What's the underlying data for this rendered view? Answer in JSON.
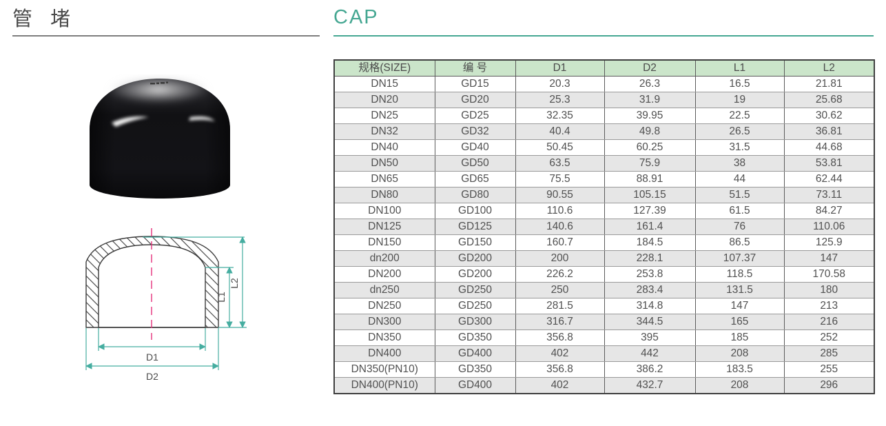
{
  "header": {
    "title_cn": "管 堵",
    "title_en": "CAP"
  },
  "drawing": {
    "dim_d1": "D1",
    "dim_d2": "D2",
    "dim_l1": "L1",
    "dim_l2": "L2"
  },
  "table": {
    "headers": [
      "规格(SIZE)",
      "编 号",
      "D1",
      "D2",
      "L1",
      "L2"
    ],
    "rows": [
      [
        "DN15",
        "GD15",
        "20.3",
        "26.3",
        "16.5",
        "21.81"
      ],
      [
        "DN20",
        "GD20",
        "25.3",
        "31.9",
        "19",
        "25.68"
      ],
      [
        "DN25",
        "GD25",
        "32.35",
        "39.95",
        "22.5",
        "30.62"
      ],
      [
        "DN32",
        "GD32",
        "40.4",
        "49.8",
        "26.5",
        "36.81"
      ],
      [
        "DN40",
        "GD40",
        "50.45",
        "60.25",
        "31.5",
        "44.68"
      ],
      [
        "DN50",
        "GD50",
        "63.5",
        "75.9",
        "38",
        "53.81"
      ],
      [
        "DN65",
        "GD65",
        "75.5",
        "88.91",
        "44",
        "62.44"
      ],
      [
        "DN80",
        "GD80",
        "90.55",
        "105.15",
        "51.5",
        "73.11"
      ],
      [
        "DN100",
        "GD100",
        "110.6",
        "127.39",
        "61.5",
        "84.27"
      ],
      [
        "DN125",
        "GD125",
        "140.6",
        "161.4",
        "76",
        "110.06"
      ],
      [
        "DN150",
        "GD150",
        "160.7",
        "184.5",
        "86.5",
        "125.9"
      ],
      [
        "dn200",
        "GD200",
        "200",
        "228.1",
        "107.37",
        "147"
      ],
      [
        "DN200",
        "GD200",
        "226.2",
        "253.8",
        "118.5",
        "170.58"
      ],
      [
        "dn250",
        "GD250",
        "250",
        "283.4",
        "131.5",
        "180"
      ],
      [
        "DN250",
        "GD250",
        "281.5",
        "314.8",
        "147",
        "213"
      ],
      [
        "DN300",
        "GD300",
        "316.7",
        "344.5",
        "165",
        "216"
      ],
      [
        "DN350",
        "GD350",
        "356.8",
        "395",
        "185",
        "252"
      ],
      [
        "DN400",
        "GD400",
        "402",
        "442",
        "208",
        "285"
      ],
      [
        "DN350(PN10)",
        "GD350",
        "356.8",
        "386.2",
        "183.5",
        "255"
      ],
      [
        "DN400(PN10)",
        "GD400",
        "402",
        "432.7",
        "208",
        "296"
      ]
    ]
  },
  "colors": {
    "accent_teal": "#45a792",
    "header_row_green": "#cbe5ca",
    "alt_row_gray": "#e6e6e6",
    "centerline_pink": "#e5307a",
    "line_dark": "#3a3a3a",
    "text_gray": "#4a4a4a"
  }
}
